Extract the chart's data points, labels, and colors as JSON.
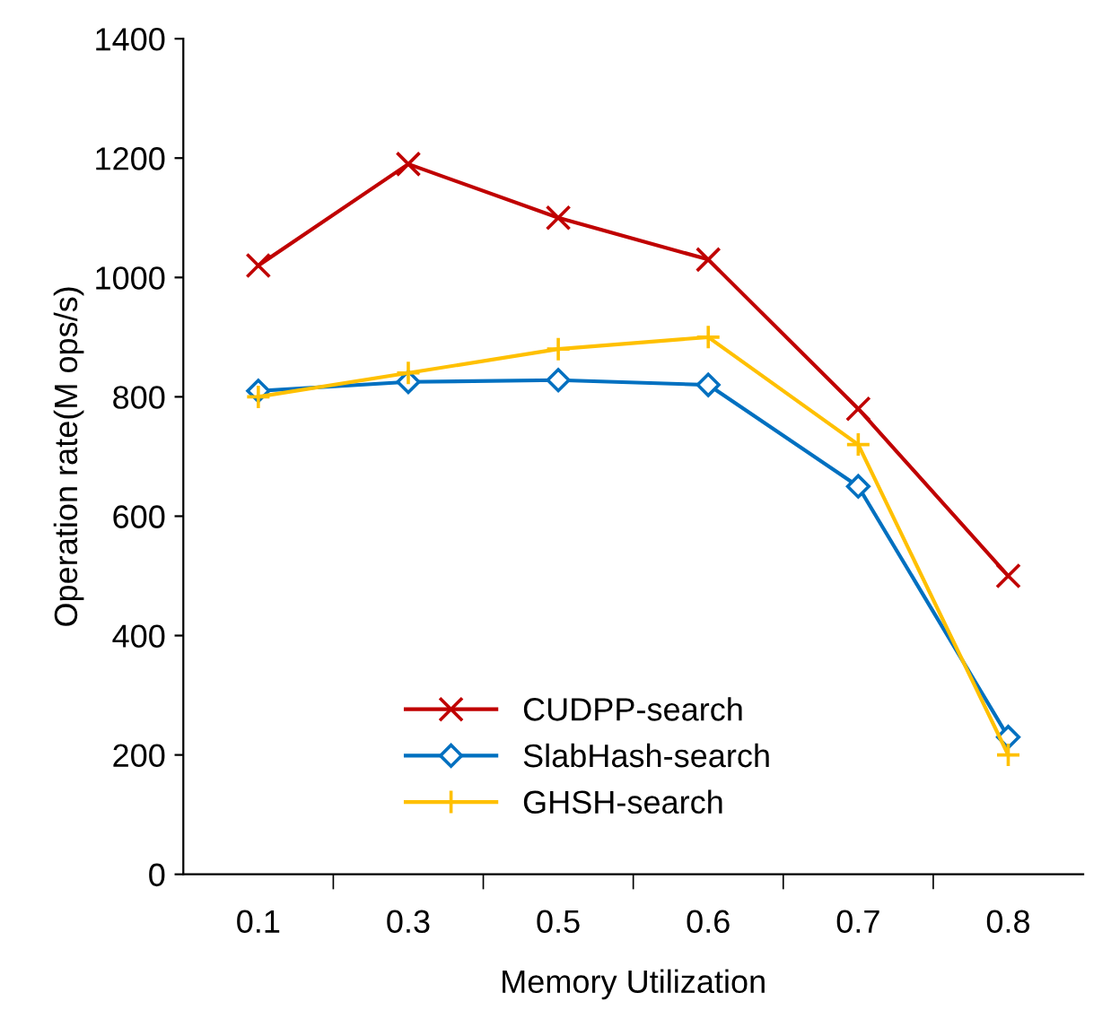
{
  "chart_data": {
    "type": "line",
    "xlabel": "Memory Utilization",
    "ylabel": "Operation rate(M ops/s)",
    "categories": [
      "0.1",
      "0.3",
      "0.5",
      "0.6",
      "0.7",
      "0.8"
    ],
    "series": [
      {
        "name": "CUDPP-search",
        "color": "#c00000",
        "marker": "x",
        "values": [
          1020,
          1190,
          1100,
          1030,
          780,
          500
        ]
      },
      {
        "name": "SlabHash-search",
        "color": "#0070c0",
        "marker": "diamond",
        "values": [
          810,
          825,
          828,
          820,
          650,
          230
        ]
      },
      {
        "name": "GHSH-search",
        "color": "#ffc000",
        "marker": "plus",
        "values": [
          800,
          840,
          880,
          900,
          720,
          200
        ]
      }
    ],
    "ylim": [
      0,
      1400
    ],
    "yticks": [
      0,
      200,
      400,
      600,
      800,
      1000,
      1200,
      1400
    ],
    "grid": false,
    "legend": "bottom"
  }
}
